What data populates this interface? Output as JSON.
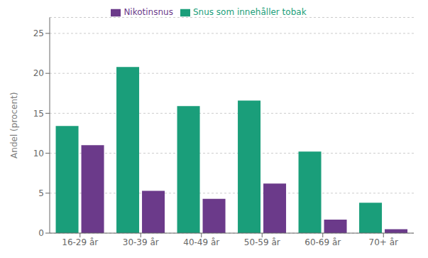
{
  "chart_data": {
    "type": "bar",
    "categories": [
      "16-29 år",
      "30-39 år",
      "40-49 år",
      "50-59 år",
      "60-69 år",
      "70+ år"
    ],
    "series": [
      {
        "name": "Snus som innehåller tobak",
        "color": "#1a9e7a",
        "values": [
          13.4,
          20.8,
          15.9,
          16.6,
          10.2,
          3.8
        ]
      },
      {
        "name": "Nikotinsnus",
        "color": "#6b3a8a",
        "values": [
          11.0,
          5.3,
          4.3,
          6.2,
          1.7,
          0.5
        ]
      }
    ],
    "ylabel": "Andel (procent)",
    "ylim": [
      0,
      27
    ],
    "yticks": [
      0,
      5,
      10,
      15,
      20,
      25
    ],
    "grid": true,
    "legend": "top"
  }
}
